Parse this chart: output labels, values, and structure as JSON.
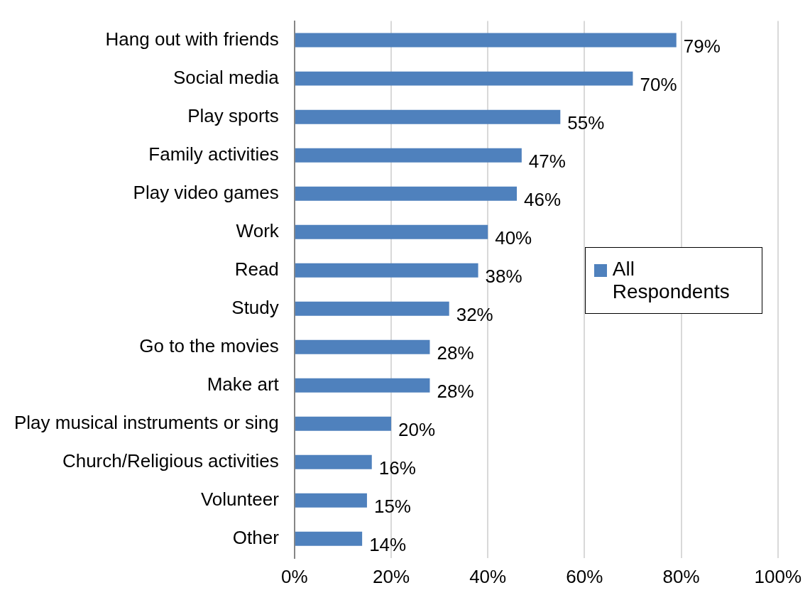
{
  "chart_data": {
    "type": "bar",
    "orientation": "horizontal",
    "categories": [
      "Hang out with friends",
      "Social media",
      "Play sports",
      "Family activities",
      "Play video games",
      "Work",
      "Read",
      "Study",
      "Go to the movies",
      "Make art",
      "Play musical instruments or sing",
      "Church/Religious activities",
      "Volunteer",
      "Other"
    ],
    "series": [
      {
        "name": "All Respondents",
        "color": "#4f81bd",
        "values": [
          79,
          70,
          55,
          47,
          46,
          40,
          38,
          32,
          28,
          28,
          20,
          16,
          15,
          14
        ],
        "value_labels": [
          "79%",
          "70%",
          "55%",
          "47%",
          "46%",
          "40%",
          "38%",
          "32%",
          "28%",
          "28%",
          "20%",
          "16%",
          "15%",
          "14%"
        ]
      }
    ],
    "xlim": [
      0,
      100
    ],
    "xticks": [
      {
        "value": 0,
        "label": "0%"
      },
      {
        "value": 20,
        "label": "20%"
      },
      {
        "value": 40,
        "label": "40%"
      },
      {
        "value": 60,
        "label": "60%"
      },
      {
        "value": 80,
        "label": "80%"
      },
      {
        "value": 100,
        "label": "100%"
      }
    ],
    "grid": "x",
    "legend": "right"
  }
}
